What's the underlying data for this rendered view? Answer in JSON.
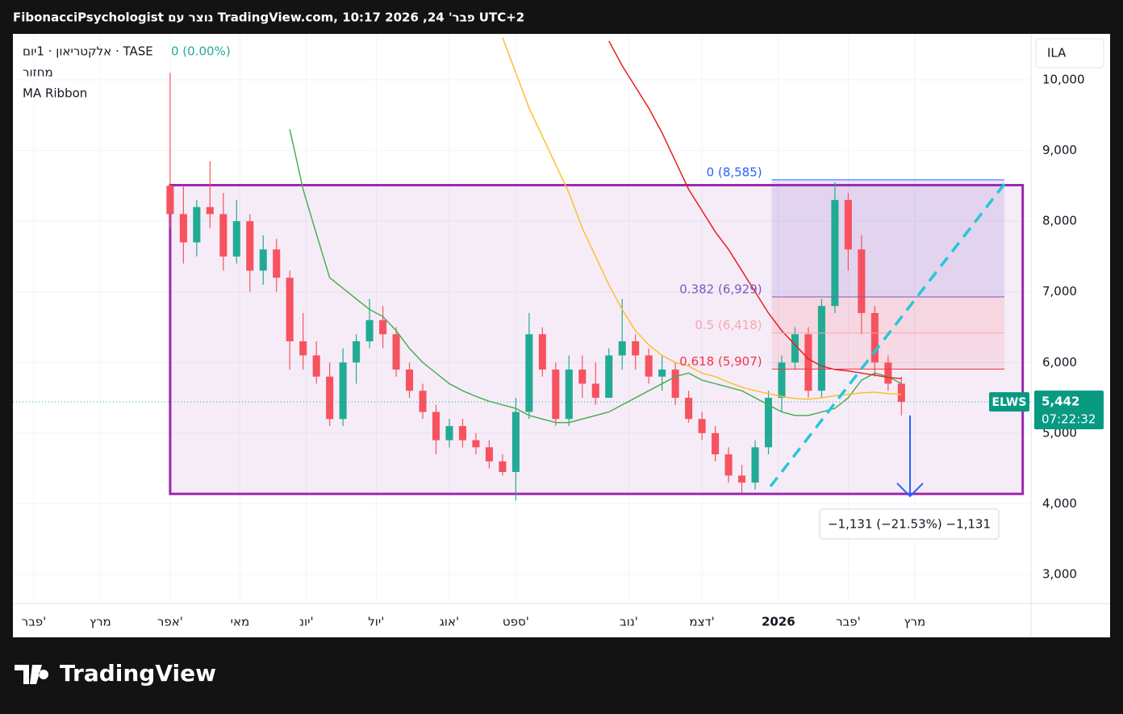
{
  "header": "FibonacciPsychologist נוצר עם TradingView.com, פבר' 24, 2026 10:17 UTC+2",
  "legend": {
    "symbol": "אלקטריאון · 1יום · TASE",
    "change": "0 (0.00%)",
    "volume": "מחזור",
    "indicator": "MA Ribbon"
  },
  "currency": "ILA",
  "logo": "TradingView",
  "chart_data": {
    "type": "candlestick",
    "x": [
      0,
      4,
      8,
      12,
      16,
      20,
      24,
      28,
      32,
      36,
      40,
      44,
      48,
      52,
      56,
      60,
      64,
      68,
      72,
      76,
      80,
      84,
      88,
      92,
      96,
      100,
      104,
      108,
      112,
      116,
      120,
      124,
      128,
      132,
      136,
      140,
      144,
      148,
      152,
      156,
      160,
      164,
      168,
      172,
      176,
      180,
      184,
      188,
      192,
      196,
      200,
      204,
      208,
      212,
      216,
      220
    ],
    "open": [
      8500,
      8100,
      7700,
      8200,
      8100,
      7500,
      8000,
      7300,
      7600,
      7200,
      6300,
      6100,
      5800,
      5200,
      6000,
      6300,
      6600,
      6400,
      5900,
      5600,
      5300,
      4900,
      5100,
      4900,
      4800,
      4600,
      4450,
      5300,
      6400,
      5900,
      5200,
      5900,
      5700,
      5500,
      6100,
      6300,
      6100,
      5800,
      5900,
      5500,
      5200,
      5000,
      4700,
      4400,
      4300,
      4800,
      5500,
      6000,
      6400,
      5600,
      6800,
      8300,
      7600,
      6700,
      6000,
      5700
    ],
    "high": [
      10100,
      8500,
      8300,
      8850,
      8400,
      8300,
      8100,
      7800,
      7750,
      7300,
      6700,
      6300,
      6000,
      6200,
      6400,
      6900,
      6800,
      6500,
      6000,
      5700,
      5400,
      5200,
      5200,
      5000,
      4900,
      4700,
      5500,
      6700,
      6500,
      6000,
      6100,
      6100,
      6000,
      6200,
      6900,
      6400,
      6200,
      6100,
      6000,
      5600,
      5300,
      5100,
      4800,
      4550,
      4900,
      5600,
      6100,
      6500,
      6500,
      6900,
      8550,
      8400,
      7800,
      6800,
      6100,
      5800
    ],
    "low": [
      7900,
      7400,
      7500,
      7900,
      7300,
      7400,
      7000,
      7100,
      7000,
      5900,
      5900,
      5700,
      5100,
      5100,
      5700,
      6200,
      6200,
      5800,
      5500,
      5200,
      4700,
      4800,
      4800,
      4700,
      4500,
      4400,
      4050,
      5200,
      5800,
      5100,
      5100,
      5500,
      5400,
      5500,
      5900,
      5900,
      5700,
      5600,
      5400,
      5150,
      4900,
      4600,
      4300,
      4150,
      4200,
      4700,
      5300,
      5900,
      5500,
      5500,
      6700,
      7300,
      6400,
      5800,
      5600,
      5250
    ],
    "close": [
      8100,
      7700,
      8200,
      8100,
      7500,
      8000,
      7300,
      7600,
      7200,
      6300,
      6100,
      5800,
      5200,
      6000,
      6300,
      6600,
      6400,
      5900,
      5600,
      5300,
      4900,
      5100,
      4900,
      4800,
      4600,
      4450,
      5300,
      6400,
      5900,
      5200,
      5900,
      5700,
      5500,
      6100,
      6300,
      6100,
      5800,
      5900,
      5500,
      5200,
      5000,
      4700,
      4400,
      4300,
      4800,
      5500,
      6000,
      6400,
      5600,
      6800,
      8300,
      7600,
      6700,
      6000,
      5700,
      5442
    ],
    "up_color": "#22ab94",
    "down_color": "#f7525f",
    "series": [
      {
        "color": "#4caf50",
        "values": [
          null,
          null,
          null,
          null,
          null,
          null,
          null,
          null,
          null,
          9300,
          8450,
          7820,
          7200,
          7050,
          6900,
          6750,
          6650,
          6450,
          6200,
          6000,
          5850,
          5700,
          5600,
          5520,
          5450,
          5400,
          5350,
          5250,
          5200,
          5150,
          5150,
          5200,
          5250,
          5300,
          5400,
          5500,
          5600,
          5700,
          5800,
          5850,
          5750,
          5700,
          5650,
          5600,
          5500,
          5400,
          5300,
          5250,
          5250,
          5300,
          5350,
          5500,
          5750,
          5850,
          5800,
          5700
        ]
      },
      {
        "color": "#fbc02d",
        "values": [
          null,
          null,
          null,
          null,
          null,
          null,
          null,
          null,
          null,
          null,
          null,
          null,
          null,
          null,
          null,
          null,
          null,
          null,
          null,
          null,
          null,
          null,
          null,
          null,
          null,
          10600,
          10100,
          9600,
          9200,
          8800,
          8400,
          7900,
          7500,
          7100,
          6750,
          6450,
          6250,
          6100,
          6000,
          5950,
          5850,
          5800,
          5720,
          5650,
          5600,
          5560,
          5520,
          5490,
          5480,
          5500,
          5530,
          5550,
          5570,
          5580,
          5560,
          5550
        ]
      },
      {
        "color": "#e91e1e",
        "values": [
          null,
          null,
          null,
          null,
          null,
          null,
          null,
          null,
          null,
          null,
          null,
          null,
          null,
          null,
          null,
          null,
          null,
          null,
          null,
          null,
          null,
          null,
          null,
          null,
          null,
          null,
          null,
          null,
          null,
          null,
          null,
          null,
          null,
          10550,
          10200,
          9900,
          9600,
          9250,
          8850,
          8450,
          8150,
          7850,
          7600,
          7300,
          7000,
          6700,
          6450,
          6250,
          6050,
          5950,
          5900,
          5880,
          5850,
          5820,
          5790,
          5770
        ]
      }
    ],
    "xlim": [
      -47.3,
      259
    ],
    "xticks": [
      {
        "value": -41,
        "label": "פבר'"
      },
      {
        "value": -21,
        "label": "מרץ"
      },
      {
        "value": 0,
        "label": "אפר'"
      },
      {
        "value": 21,
        "label": "מאי"
      },
      {
        "value": 41,
        "label": "יונ'"
      },
      {
        "value": 62,
        "label": "יול'"
      },
      {
        "value": 84,
        "label": "אוג'"
      },
      {
        "value": 104,
        "label": "ספט'"
      },
      {
        "value": 138,
        "label": "נוב'"
      },
      {
        "value": 160,
        "label": "דצמ'"
      },
      {
        "value": 183,
        "label": "2026"
      },
      {
        "value": 204,
        "label": "פבר'"
      },
      {
        "value": 224,
        "label": "מרץ"
      }
    ],
    "ylim": [
      2589,
      10651
    ],
    "yticks": [
      {
        "value": 3000,
        "label": "3,000"
      },
      {
        "value": 4000,
        "label": "4,000"
      },
      {
        "value": 5000,
        "label": "5,000"
      },
      {
        "value": 6000,
        "label": "6,000"
      },
      {
        "value": 7000,
        "label": "7,000"
      },
      {
        "value": 8000,
        "label": "8,000"
      },
      {
        "value": 9000,
        "label": "9,000"
      },
      {
        "value": 10000,
        "label": "10,000"
      }
    ],
    "grid": true,
    "last_price": {
      "value": 5442,
      "label": "5,442"
    },
    "ticker": "ELWS",
    "countdown": "07:22:32",
    "box": {
      "x": [
        0,
        256.5
      ],
      "y": [
        4140,
        8510
      ],
      "color": "#9c27b0"
    },
    "fib": {
      "x": [
        181,
        251
      ],
      "levels": [
        {
          "value": 8585,
          "label": "0 (8,585)",
          "color": "#2962ff"
        },
        {
          "value": 6929,
          "label": "0.382 (6,929)",
          "color": "#7e57c2"
        },
        {
          "value": 6418,
          "label": "0.5 (6,418)",
          "color": "#f7a5ad"
        },
        {
          "value": 5907,
          "label": "0.618 (5,907)",
          "color": "#f23645"
        }
      ],
      "zone_colors": [
        "rgba(126,87,194,0.16)",
        "rgba(242,54,69,0.12)",
        "rgba(242,54,69,0.10)"
      ]
    },
    "trendline": {
      "x": [
        180.6,
        251
      ],
      "y": [
        4245,
        8527
      ],
      "color": "#26c6da"
    },
    "arrow": {
      "x": 222.6,
      "y": [
        5250,
        4107
      ],
      "color": "#2962ff"
    },
    "measure": "−1,131 (−21.53%) −1,131"
  }
}
